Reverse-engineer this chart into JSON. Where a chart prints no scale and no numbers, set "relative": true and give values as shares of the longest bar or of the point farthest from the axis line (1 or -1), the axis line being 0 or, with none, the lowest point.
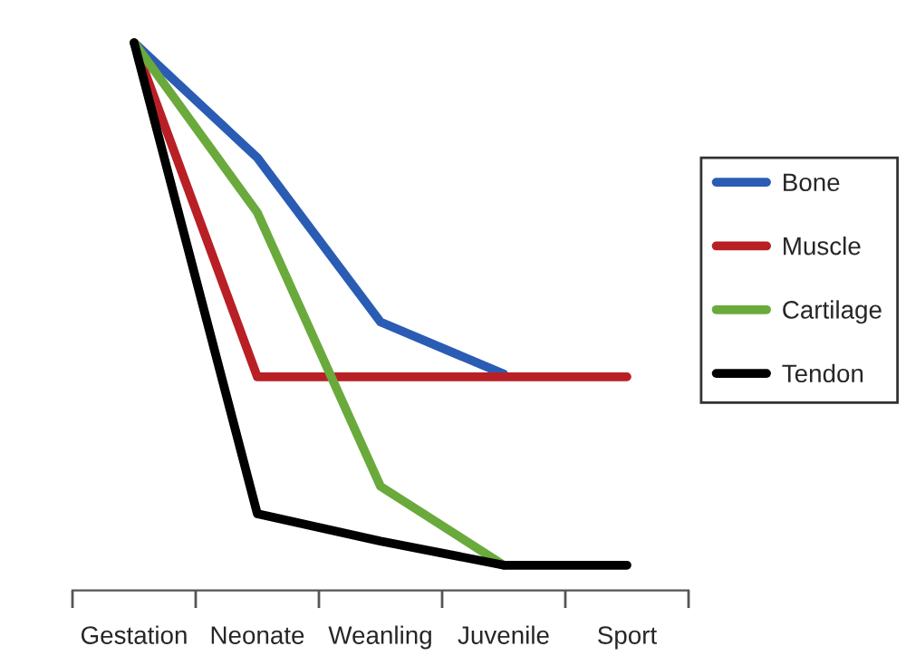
{
  "chart_data": {
    "type": "line",
    "relative": true,
    "categories": [
      "Gestation",
      "Neonate",
      "Weanling",
      "Juvenile",
      "Sport"
    ],
    "series": [
      {
        "name": "Bone",
        "color": "#2a5cb4",
        "values": [
          1,
          0.79,
          0.49,
          0.395,
          null
        ]
      },
      {
        "name": "Muscle",
        "color": "#b82025",
        "values": [
          1,
          0.39,
          0.39,
          0.39,
          0.39
        ]
      },
      {
        "name": "Cartilage",
        "color": "#6aaa3c",
        "values": [
          1,
          0.69,
          0.19,
          0.046,
          null
        ]
      },
      {
        "name": "Tendon",
        "color": "#000000",
        "values": [
          1,
          0.14,
          0.09,
          0.046,
          0.046
        ]
      }
    ],
    "legend": "right",
    "grid": false,
    "marker": "none",
    "line_style": "solid"
  }
}
